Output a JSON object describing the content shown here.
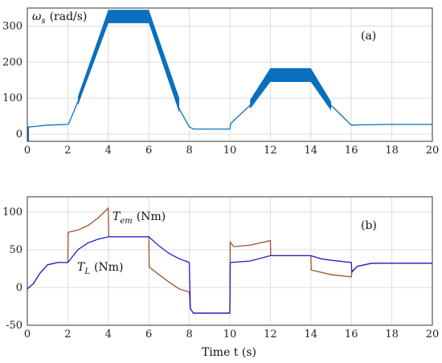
{
  "chart_data": [
    {
      "type": "line",
      "panel_label": "(a)",
      "ylabel_symbol": "ω",
      "ylabel_sub": "s",
      "ylabel_unit": "(rad/s)",
      "xlim": [
        0,
        20
      ],
      "ylim": [
        -20,
        350
      ],
      "xticks": [
        0,
        2,
        4,
        6,
        8,
        10,
        12,
        14,
        16,
        18,
        20
      ],
      "yticks": [
        0,
        100,
        200,
        300
      ],
      "grid": true,
      "color": "#0a6fbd",
      "series": [
        {
          "values_x": [
            0,
            0.05,
            0.1,
            0.5,
            1,
            2,
            2.05,
            2.5,
            4,
            6,
            7.5,
            8,
            8.2,
            10,
            10.05,
            11,
            12,
            14,
            15,
            16,
            16.5,
            18,
            20
          ],
          "values_y": [
            0,
            20,
            20,
            22,
            25,
            27,
            30,
            90,
            320,
            320,
            70,
            20,
            14,
            14,
            30,
            80,
            160,
            160,
            80,
            25,
            26,
            27,
            27
          ]
        }
      ],
      "bands": [
        {
          "x": [
            0,
            0.08
          ],
          "low": [
            -20,
            -20
          ],
          "high": [
            20,
            20
          ]
        },
        {
          "x": [
            2.5,
            4,
            6,
            7.5
          ],
          "low": [
            80,
            308,
            308,
            60
          ],
          "high": [
            105,
            345,
            345,
            100
          ]
        },
        {
          "x": [
            11,
            12,
            14,
            15
          ],
          "low": [
            70,
            145,
            145,
            65
          ],
          "high": [
            95,
            183,
            183,
            90
          ]
        }
      ]
    },
    {
      "type": "line",
      "panel_label": "(b)",
      "xlabel": "Time t (s)",
      "xlim": [
        0,
        20
      ],
      "ylim": [
        -50,
        120
      ],
      "xticks": [
        0,
        2,
        4,
        6,
        8,
        10,
        12,
        14,
        16,
        18,
        20
      ],
      "yticks": [
        -50,
        0,
        50,
        100
      ],
      "grid": true,
      "series": [
        {
          "name_symbol": "T",
          "name_sub": "em",
          "name_unit": "(Nm)",
          "color": "#a0522d",
          "values_x": [
            0,
            0.3,
            0.6,
            1,
            1.5,
            2,
            2.02,
            2.5,
            3,
            3.5,
            4,
            4.02,
            5,
            6,
            6.02,
            6.5,
            7,
            7.5,
            8,
            8.05,
            8.2,
            10,
            10.02,
            10.2,
            11,
            12,
            12.02,
            14,
            14.02,
            15,
            16,
            16.02,
            16.3,
            17,
            20
          ],
          "values_y": [
            -2,
            5,
            18,
            30,
            33,
            33,
            73,
            76,
            82,
            92,
            105,
            67,
            67,
            67,
            27,
            17,
            7,
            -2,
            -6,
            -28,
            -34,
            -34,
            60,
            54,
            56,
            62,
            42,
            42,
            23,
            17,
            14,
            20,
            28,
            32,
            32
          ]
        },
        {
          "name_symbol": "T",
          "name_sub": "L",
          "name_unit": "(Nm)",
          "color": "#2020cc",
          "values_x": [
            0,
            0.3,
            0.6,
            1,
            1.5,
            2,
            2.5,
            3,
            3.5,
            4,
            6,
            6.5,
            7,
            7.5,
            8,
            8.05,
            8.2,
            10,
            10.02,
            11,
            12,
            14,
            14.5,
            15,
            16,
            16.02,
            16.3,
            17,
            20
          ],
          "values_y": [
            -2,
            5,
            18,
            30,
            33,
            33,
            50,
            59,
            64,
            67,
            67,
            55,
            45,
            38,
            33,
            -28,
            -34,
            -34,
            33,
            35,
            42,
            42,
            38,
            36,
            33,
            21,
            28,
            32,
            32
          ]
        }
      ]
    }
  ]
}
